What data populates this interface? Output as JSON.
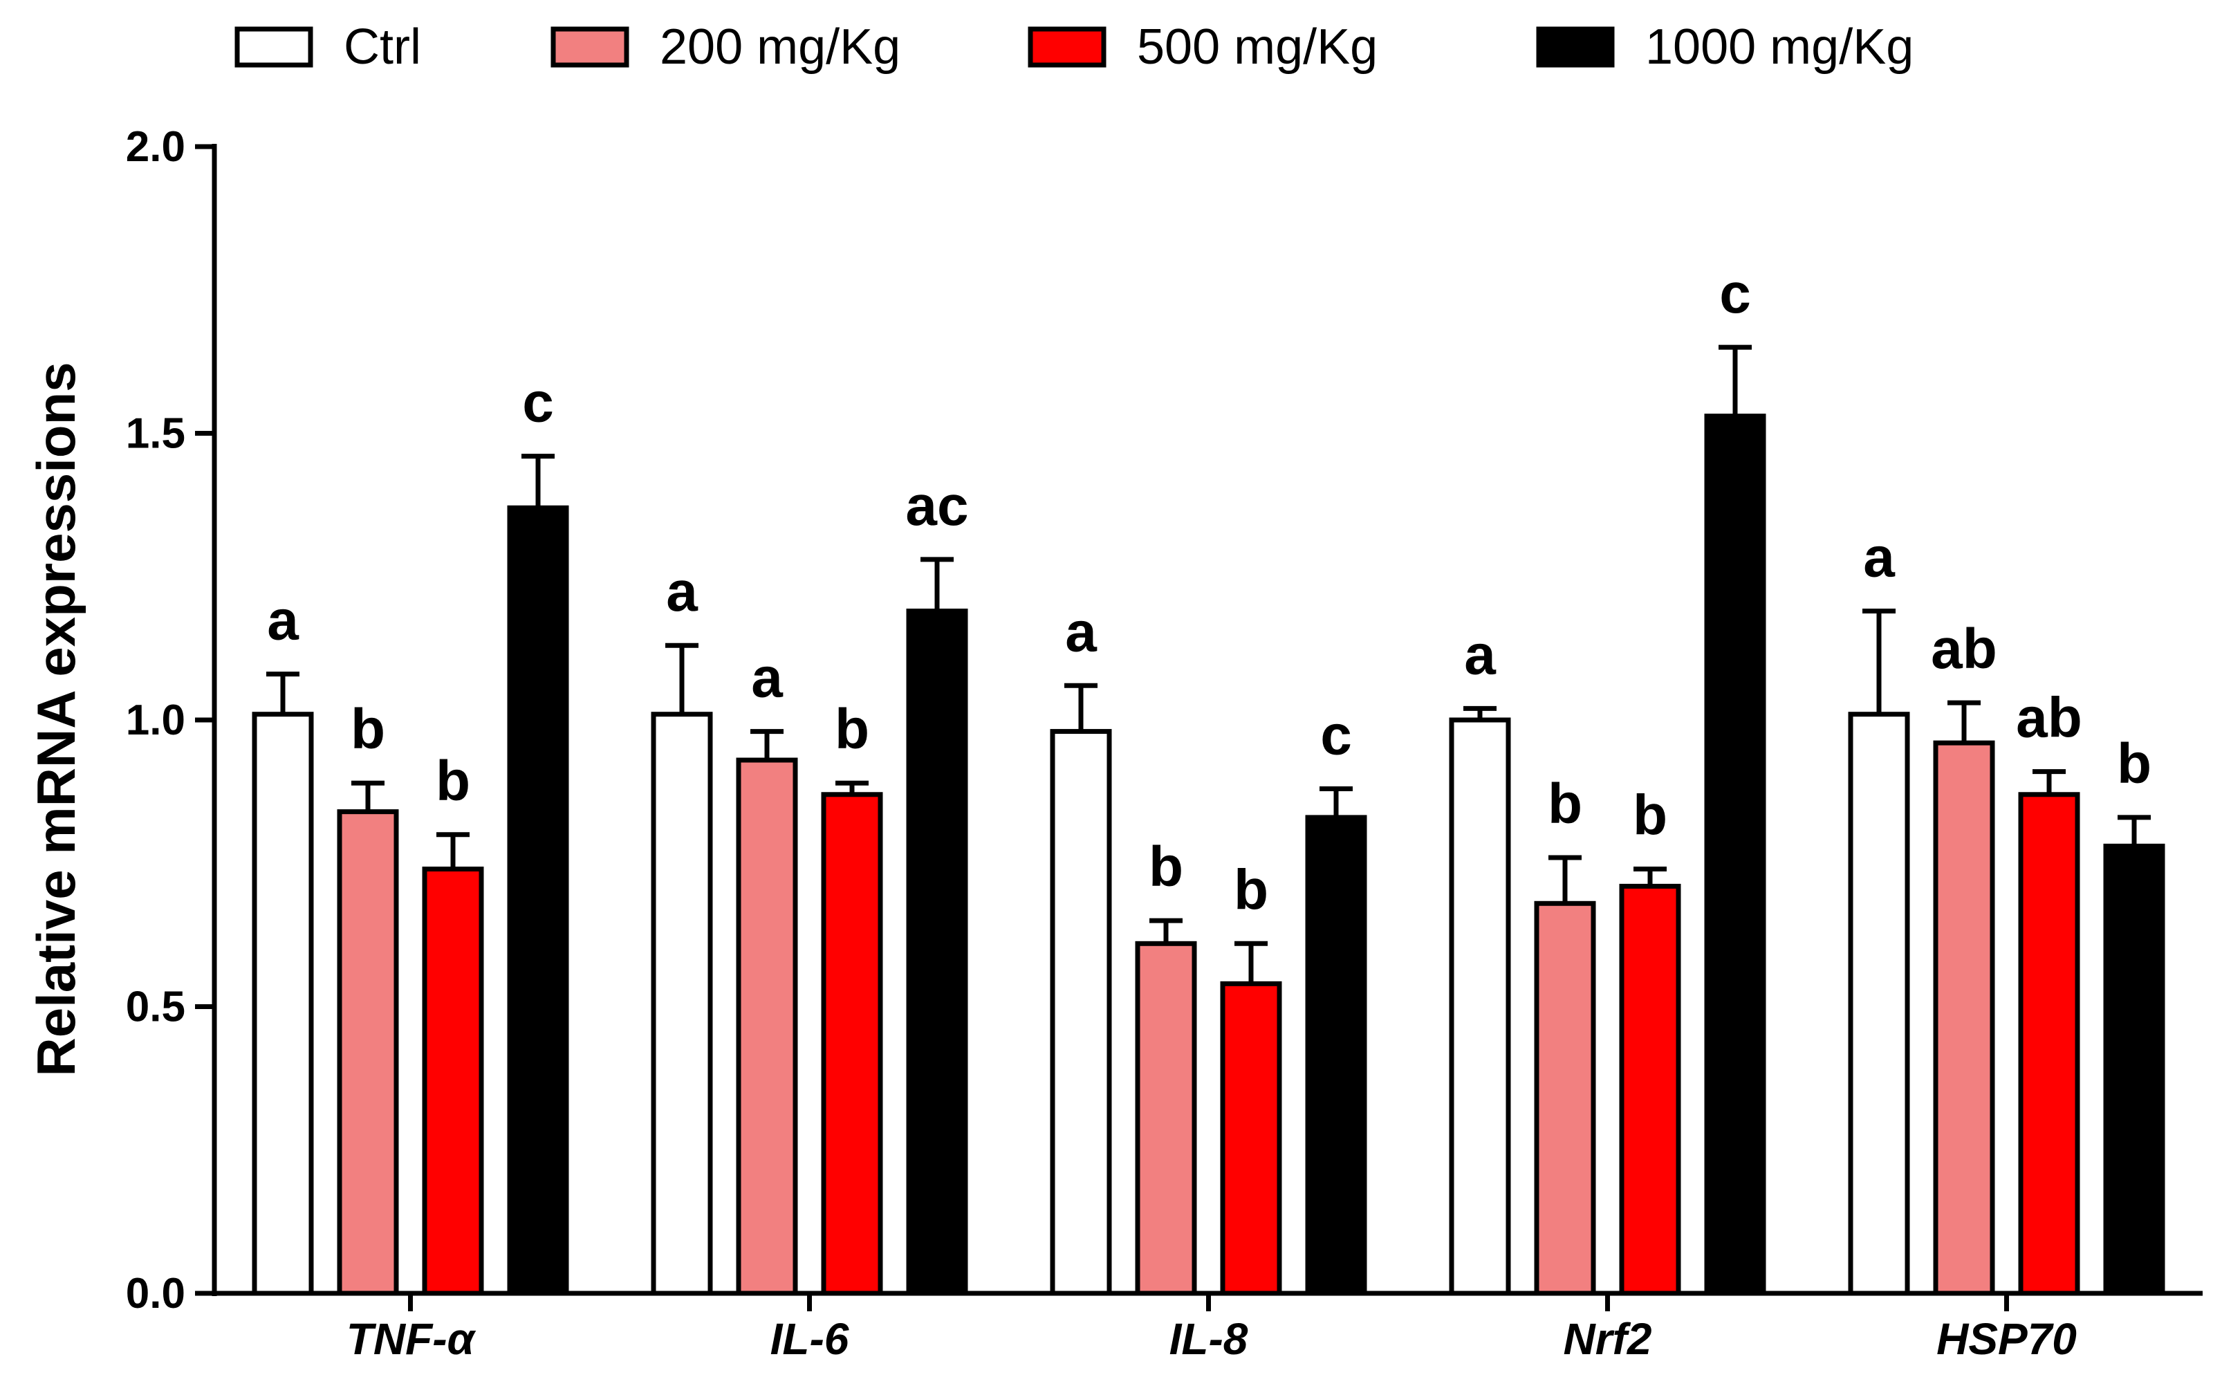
{
  "chart_data": {
    "type": "bar",
    "title": "",
    "xlabel": "",
    "ylabel": "Relative mRNA expressions",
    "ylim": [
      0,
      2.0
    ],
    "yticks": [
      0.0,
      0.5,
      1.0,
      1.5,
      2.0
    ],
    "ytick_labels": [
      "0.0",
      "0.5",
      "1.0",
      "1.5",
      "2.0"
    ],
    "categories": [
      "TNF-α",
      "IL-6",
      "IL-8",
      "Nrf2",
      "HSP70"
    ],
    "legend_position": "top",
    "series": [
      {
        "name": "Ctrl",
        "color": "#ffffff",
        "values": [
          1.01,
          1.01,
          0.98,
          1.0,
          1.01
        ],
        "errors": [
          0.07,
          0.12,
          0.08,
          0.02,
          0.18
        ],
        "labels": [
          "a",
          "a",
          "a",
          "a",
          "a"
        ]
      },
      {
        "name": "200 mg/Kg",
        "color": "#f28080",
        "values": [
          0.84,
          0.93,
          0.61,
          0.68,
          0.96
        ],
        "errors": [
          0.05,
          0.05,
          0.04,
          0.08,
          0.07
        ],
        "labels": [
          "b",
          "a",
          "b",
          "b",
          "ab"
        ]
      },
      {
        "name": "500 mg/Kg",
        "color": "#ff0000",
        "values": [
          0.74,
          0.87,
          0.54,
          0.71,
          0.87
        ],
        "errors": [
          0.06,
          0.02,
          0.07,
          0.03,
          0.04
        ],
        "labels": [
          "b",
          "b",
          "b",
          "b",
          "ab"
        ]
      },
      {
        "name": "1000 mg/Kg",
        "color": "#000000",
        "values": [
          1.37,
          1.19,
          0.83,
          1.53,
          0.78
        ],
        "errors": [
          0.09,
          0.09,
          0.05,
          0.12,
          0.05
        ],
        "labels": [
          "c",
          "ac",
          "c",
          "c",
          "b"
        ]
      }
    ]
  }
}
